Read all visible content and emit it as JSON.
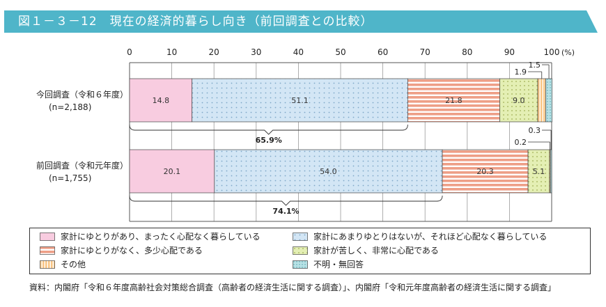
{
  "title": "図１－３－12　現在の経済的暮らし向き（前回調査との比較）",
  "colors": {
    "title_bg": "#4fb5c9",
    "very_comfortable": "#f8cce0",
    "somewhat_comfortable": "#d3e6f5",
    "not_comfortable": "#ee9f87",
    "hard": "#e4efb4",
    "other": "#f9c584",
    "unknown": "#b8e2e6"
  },
  "chart_data": {
    "type": "bar",
    "orientation": "horizontal",
    "stacked": true,
    "x_ticks": [
      "0",
      "10",
      "20",
      "30",
      "40",
      "50",
      "60",
      "70",
      "80",
      "90",
      "100"
    ],
    "x_unit": "(%)",
    "xlim": [
      0,
      100
    ],
    "grid": true,
    "categories": [
      {
        "label": "今回調査（令和６年度）",
        "sub": "(n=2,188)"
      },
      {
        "label": "前回調査（令和元年度）",
        "sub": "(n=1,755)"
      }
    ],
    "series": [
      {
        "name": "家計にゆとりがあり、まったく心配なく暮らしている",
        "key": "very_comfortable",
        "values": [
          14.8,
          20.1
        ],
        "labels": [
          "14.8",
          "20.1"
        ]
      },
      {
        "name": "家計にあまりゆとりはないが、それほど心配なく暮らしている",
        "key": "somewhat_comfortable",
        "values": [
          51.1,
          54.0
        ],
        "labels": [
          "51.1",
          "54.0"
        ]
      },
      {
        "name": "家計にゆとりがなく、多少心配である",
        "key": "not_comfortable",
        "values": [
          21.8,
          20.3
        ],
        "labels": [
          "21.8",
          "20.3"
        ]
      },
      {
        "name": "家計が苦しく、非常に心配である",
        "key": "hard",
        "values": [
          9.0,
          5.1
        ],
        "labels": [
          "9.0",
          "5.1"
        ]
      },
      {
        "name": "その他",
        "key": "other",
        "values": [
          1.9,
          0.2
        ],
        "labels": [
          "1.9",
          "0.2"
        ]
      },
      {
        "name": "不明・無回答",
        "key": "unknown",
        "values": [
          1.5,
          0.3
        ],
        "labels": [
          "1.5",
          "0.3"
        ]
      }
    ],
    "brackets": [
      {
        "bar": 0,
        "from": 0,
        "to": 65.9,
        "label": "65.9%"
      },
      {
        "bar": 1,
        "from": 0,
        "to": 74.1,
        "label": "74.1%"
      }
    ]
  },
  "source": "資料：内閣府「令和６年度高齢社会対策総合調査（高齢者の経済生活に関する調査）」、内閣府「令和元年度高齢者の経済生活に関する調査」"
}
